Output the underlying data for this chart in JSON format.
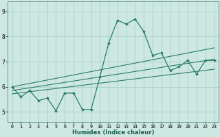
{
  "title": "",
  "xlabel": "Humidex (Indice chaleur)",
  "bg_color": "#cce8e0",
  "line_color": "#2a7a6a",
  "grid_color": "#a8cfc8",
  "xlim": [
    -0.5,
    23.5
  ],
  "ylim": [
    4.6,
    9.4
  ],
  "xticks": [
    0,
    1,
    2,
    3,
    4,
    5,
    6,
    7,
    8,
    9,
    10,
    11,
    12,
    13,
    14,
    15,
    16,
    17,
    18,
    19,
    20,
    21,
    22,
    23
  ],
  "yticks": [
    5,
    6,
    7,
    8,
    9
  ],
  "main_x": [
    0,
    1,
    2,
    3,
    4,
    5,
    6,
    7,
    8,
    9,
    10,
    11,
    12,
    13,
    14,
    15,
    16,
    17,
    18,
    19,
    20,
    21,
    22,
    23
  ],
  "main_y": [
    6.0,
    5.6,
    5.85,
    5.45,
    5.55,
    5.05,
    5.75,
    5.75,
    5.1,
    5.1,
    6.4,
    7.75,
    8.65,
    8.5,
    8.7,
    8.2,
    7.25,
    7.35,
    6.65,
    6.8,
    7.05,
    6.5,
    7.05,
    7.05
  ],
  "upper_line_x": [
    0,
    23
  ],
  "upper_line_y": [
    6.0,
    7.55
  ],
  "lower_line_x": [
    0,
    23
  ],
  "lower_line_y": [
    5.85,
    7.1
  ],
  "lowest_line_x": [
    0,
    23
  ],
  "lowest_line_y": [
    5.72,
    6.7
  ],
  "xlabel_fontsize": 6.0,
  "tick_fontsize_x": 4.8,
  "tick_fontsize_y": 5.5
}
